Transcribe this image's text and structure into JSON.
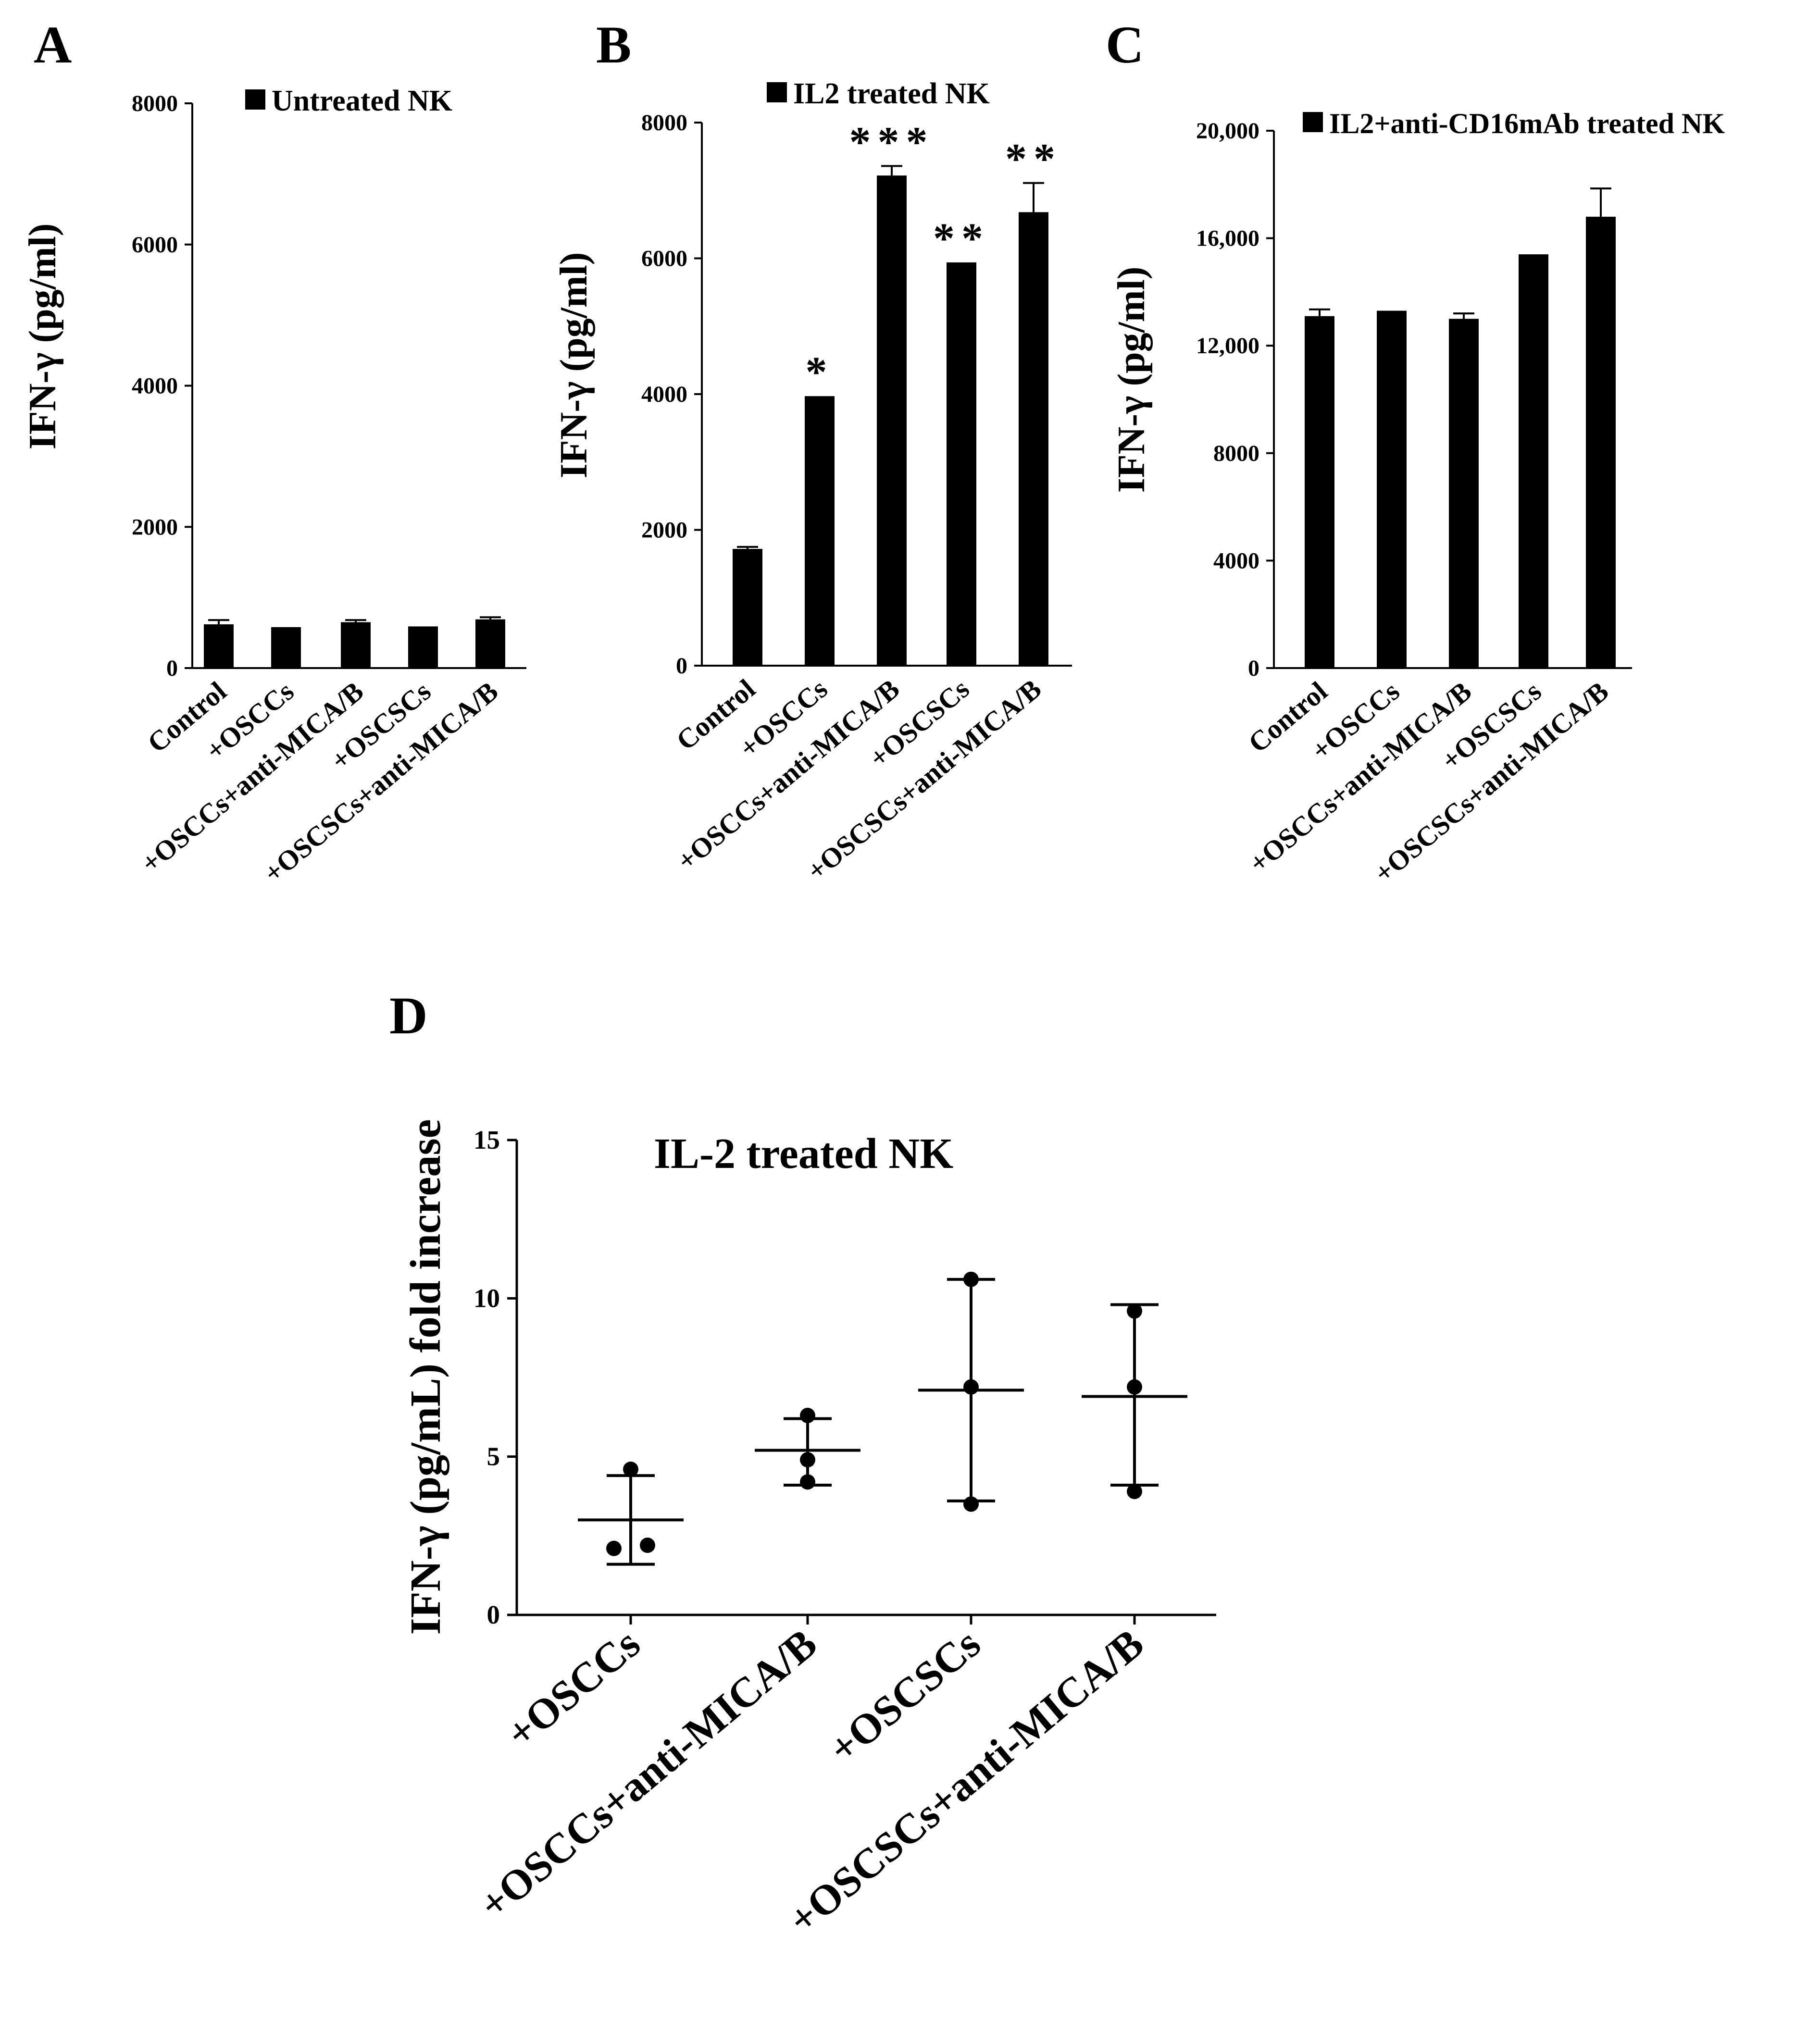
{
  "chart_data": [
    {
      "panel": "A",
      "type": "bar",
      "legend": "Untreated NK",
      "ylabel": "IFN-γ (pg/ml)",
      "ylim": [
        0,
        8000
      ],
      "yticks": [
        "0",
        "2000",
        "4000",
        "6000",
        "8000"
      ],
      "categories": [
        "Control",
        "+OSCCs",
        "+OSCCs+anti-MICA/B",
        "+OSCSCs",
        "+OSCSCs+anti-MICA/B"
      ],
      "values": [
        620,
        580,
        650,
        590,
        690
      ],
      "errors": [
        60,
        0,
        30,
        0,
        30
      ],
      "significance": [
        "",
        "",
        "",
        "",
        ""
      ]
    },
    {
      "panel": "B",
      "type": "bar",
      "legend": "IL2 treated NK",
      "ylabel": "IFN-γ (pg/ml)",
      "ylim": [
        0,
        8000
      ],
      "yticks": [
        "0",
        "2000",
        "4000",
        "6000",
        "8000"
      ],
      "categories": [
        "Control",
        "+OSCCs",
        "+OSCCs+anti-MICA/B",
        "+OSCSCs",
        "+OSCSCs+anti-MICA/B"
      ],
      "values": [
        1720,
        3970,
        7220,
        5940,
        6680
      ],
      "errors": [
        30,
        0,
        140,
        0,
        430
      ],
      "significance": [
        "",
        "*",
        "***",
        "**",
        "**"
      ]
    },
    {
      "panel": "C",
      "type": "bar",
      "legend": "IL2+anti-CD16mAb treated NK",
      "ylabel": "IFN-γ (pg/ml)",
      "ylim": [
        0,
        20000
      ],
      "yticks": [
        "0",
        "4000",
        "8000",
        "12,000",
        "16,000",
        "20,000"
      ],
      "categories": [
        "Control",
        "+OSCCs",
        "+OSCCs+anti-MICA/B",
        "+OSCSCs",
        "+OSCSCs+anti-MICA/B"
      ],
      "values": [
        13100,
        13300,
        13000,
        15400,
        16800
      ],
      "errors": [
        250,
        0,
        200,
        0,
        1050
      ],
      "significance": [
        "",
        "",
        "",
        "",
        ""
      ]
    },
    {
      "panel": "D",
      "type": "scatter",
      "title": "IL-2 treated NK",
      "ylabel": "IFN-γ (pg/mL) fold increase",
      "ylim": [
        0,
        15
      ],
      "yticks": [
        "0",
        "5",
        "10",
        "15"
      ],
      "categories": [
        "+OSCCs",
        "+OSCCs+anti-MICA/B",
        "+OSCSCs",
        "+OSCSCs+anti-MICA/B"
      ],
      "points": [
        [
          4.6,
          2.1,
          2.2
        ],
        [
          6.3,
          4.9,
          4.2
        ],
        [
          10.6,
          7.2,
          3.5
        ],
        [
          9.6,
          7.2,
          3.9
        ]
      ],
      "mean": [
        3.0,
        5.2,
        7.1,
        6.9
      ],
      "sd_low": [
        1.6,
        4.1,
        3.6,
        4.1
      ],
      "sd_high": [
        4.4,
        6.2,
        10.6,
        9.8
      ]
    }
  ]
}
